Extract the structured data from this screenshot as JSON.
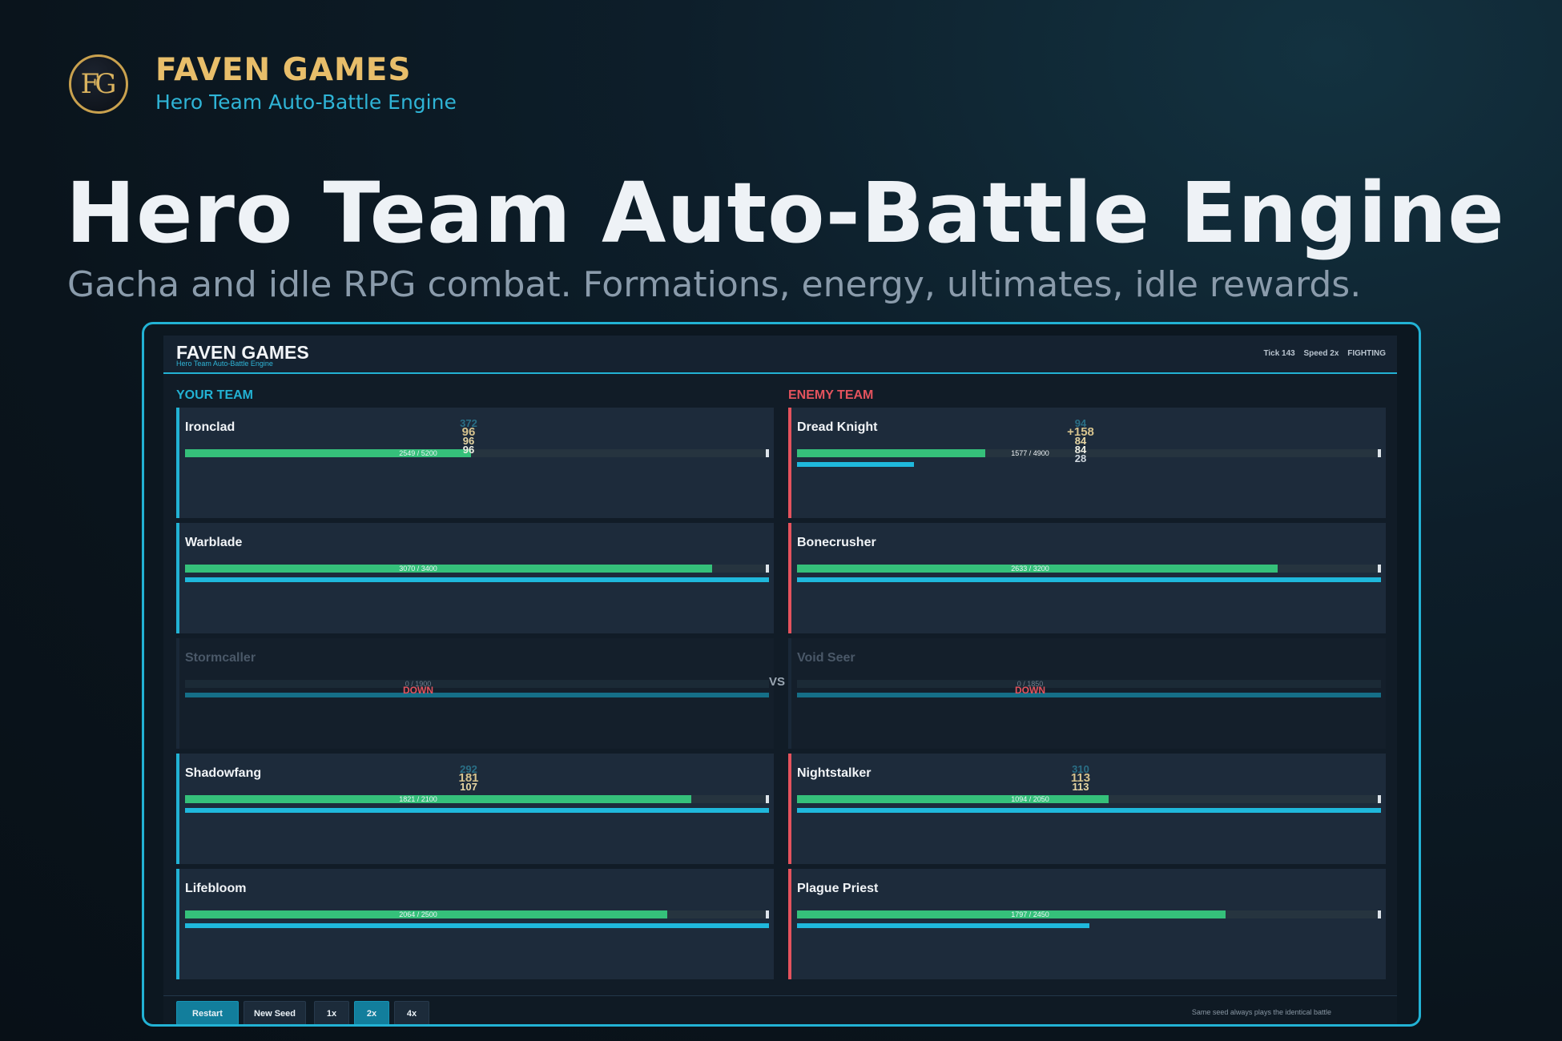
{
  "brand": {
    "logo_text": "FG",
    "name": "FAVEN GAMES",
    "subtitle": "Hero Team Auto-Battle Engine"
  },
  "hero": {
    "title": "Hero Team Auto-Battle Engine",
    "subtitle": "Gacha and idle RPG combat. Formations, energy, ultimates, idle rewards."
  },
  "app": {
    "name": "FAVEN GAMES",
    "subtitle": "Hero Team Auto-Battle Engine",
    "status": {
      "tick": "Tick 143",
      "speed": "Speed 2x",
      "state": "FIGHTING"
    },
    "vs_label": "VS",
    "down_label": "DOWN",
    "ally_team": {
      "label": "YOUR TEAM",
      "heroes": [
        {
          "name": "Ironclad",
          "hp_text": "2549 / 5200",
          "hp": 2549,
          "hp_max": 5200,
          "energy": 0,
          "floats": [
            "372",
            "96",
            "96",
            "96"
          ]
        },
        {
          "name": "Warblade",
          "hp_text": "3070 / 3400",
          "hp": 3070,
          "hp_max": 3400,
          "energy": 1,
          "floats": []
        },
        {
          "name": "Stormcaller",
          "hp_text": "0 / 1900",
          "hp": 0,
          "hp_max": 1900,
          "energy": 1,
          "down": true,
          "floats": []
        },
        {
          "name": "Shadowfang",
          "hp_text": "1821 / 2100",
          "hp": 1821,
          "hp_max": 2100,
          "energy": 1,
          "floats": [
            "292",
            "181",
            "107"
          ]
        },
        {
          "name": "Lifebloom",
          "hp_text": "2064 / 2500",
          "hp": 2064,
          "hp_max": 2500,
          "energy": 1,
          "floats": []
        }
      ]
    },
    "enemy_team": {
      "label": "ENEMY TEAM",
      "heroes": [
        {
          "name": "Dread Knight",
          "hp_text": "1577 / 4900",
          "hp": 1577,
          "hp_max": 4900,
          "energy": 0.2,
          "floats": [
            "94",
            "+158",
            "84",
            "84",
            "28"
          ]
        },
        {
          "name": "Bonecrusher",
          "hp_text": "2633 / 3200",
          "hp": 2633,
          "hp_max": 3200,
          "energy": 1,
          "floats": []
        },
        {
          "name": "Void Seer",
          "hp_text": "0 / 1850",
          "hp": 0,
          "hp_max": 1850,
          "energy": 1,
          "down": true,
          "floats": []
        },
        {
          "name": "Nightstalker",
          "hp_text": "1094 / 2050",
          "hp": 1094,
          "hp_max": 2050,
          "energy": 1,
          "floats": [
            "310",
            "113",
            "113"
          ]
        },
        {
          "name": "Plague Priest",
          "hp_text": "1797 / 2450",
          "hp": 1797,
          "hp_max": 2450,
          "energy": 0.5,
          "floats": []
        }
      ]
    },
    "controls": {
      "restart": "Restart",
      "new_seed": "New Seed",
      "speed_1x": "1x",
      "speed_2x": "2x",
      "speed_4x": "4x",
      "seed_note": "Same seed always plays the identical battle"
    }
  },
  "colors": {
    "accent": "#22b2d4",
    "enemy": "#e4535d",
    "hp": "#35c07a",
    "gold": "#e8be6a"
  }
}
